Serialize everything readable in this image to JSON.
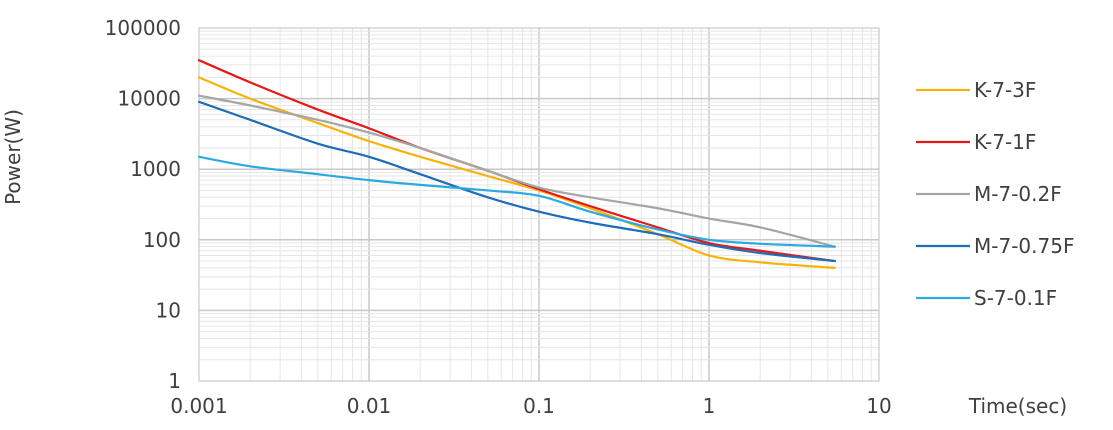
{
  "chart_data": {
    "type": "line",
    "xlabel": "Time(sec)",
    "ylabel": "Power(W)",
    "x_scale": "log",
    "y_scale": "log",
    "xlim": [
      0.001,
      10
    ],
    "ylim": [
      1,
      100000
    ],
    "x_ticks": [
      "0.001",
      "0.01",
      "0.1",
      "1",
      "10"
    ],
    "y_ticks": [
      "1",
      "10",
      "100",
      "1000",
      "10000",
      "100000"
    ],
    "grid": true,
    "legend_position": "right",
    "series": [
      {
        "name": "K-7-3F",
        "color": "#F5B30C",
        "x": [
          0.001,
          0.002,
          0.005,
          0.01,
          0.02,
          0.05,
          0.1,
          0.2,
          0.5,
          1,
          2,
          5.5
        ],
        "y": [
          20000,
          10000,
          4500,
          2500,
          1500,
          800,
          500,
          280,
          120,
          60,
          48,
          40
        ]
      },
      {
        "name": "K-7-1F",
        "color": "#E11B1B",
        "x": [
          0.001,
          0.002,
          0.005,
          0.01,
          0.02,
          0.05,
          0.1,
          0.2,
          0.5,
          1,
          2,
          5.5
        ],
        "y": [
          35000,
          17000,
          7000,
          3800,
          2000,
          950,
          520,
          300,
          150,
          90,
          70,
          50
        ]
      },
      {
        "name": "M-7-0.2F",
        "color": "#A5A5A5",
        "x": [
          0.001,
          0.002,
          0.005,
          0.01,
          0.02,
          0.05,
          0.1,
          0.2,
          0.5,
          1,
          2,
          5.5
        ],
        "y": [
          11000,
          8000,
          5000,
          3300,
          2000,
          950,
          550,
          400,
          280,
          200,
          150,
          80
        ]
      },
      {
        "name": "M-7-0.75F",
        "color": "#1F6CB7",
        "x": [
          0.001,
          0.002,
          0.005,
          0.01,
          0.02,
          0.05,
          0.1,
          0.2,
          0.5,
          1,
          2,
          5.5
        ],
        "y": [
          9000,
          5000,
          2300,
          1500,
          850,
          400,
          250,
          175,
          120,
          85,
          65,
          50
        ]
      },
      {
        "name": "S-7-0.1F",
        "color": "#2BA9E0",
        "x": [
          0.001,
          0.002,
          0.005,
          0.01,
          0.02,
          0.05,
          0.1,
          0.2,
          0.5,
          1,
          2,
          5.5
        ],
        "y": [
          1500,
          1100,
          850,
          700,
          600,
          500,
          420,
          250,
          140,
          100,
          88,
          80
        ]
      }
    ]
  }
}
